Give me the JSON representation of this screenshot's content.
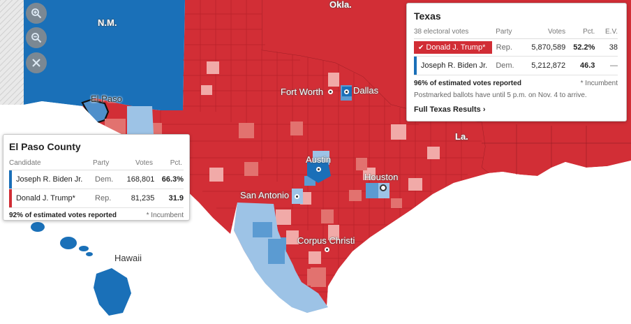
{
  "map": {
    "labels": {
      "nm": "N.M.",
      "okla": "Okla.",
      "la": "La.",
      "el_paso": "El Paso",
      "fort_worth": "Fort Worth",
      "dallas": "Dallas",
      "austin": "Austin",
      "houston": "Houston",
      "san_antonio": "San Antonio",
      "corpus_christi": "Corpus Christi",
      "hawaii": "Hawaii"
    },
    "colors": {
      "rep_strong": "#d22e36",
      "rep_medium": "#e2726f",
      "rep_light": "#f1aaa8",
      "dem_strong": "#1a6fb8",
      "dem_medium": "#5b9bd2",
      "dem_light": "#9dc3e6"
    },
    "controls": {
      "zoom_in": "zoom-in-icon",
      "zoom_out": "zoom-out-icon",
      "reset": "close-icon"
    }
  },
  "texas_panel": {
    "title": "Texas",
    "headers": {
      "electoral": "38 electoral votes",
      "party": "Party",
      "votes": "Votes",
      "pct": "Pct.",
      "ev": "E.V."
    },
    "candidates": [
      {
        "name": "Donald J. Trump*",
        "party": "Rep.",
        "votes": "5,870,589",
        "pct": "52.2%",
        "ev": "38",
        "winner": true,
        "color": "#d12d35"
      },
      {
        "name": "Joseph R. Biden Jr.",
        "party": "Dem.",
        "votes": "5,212,872",
        "pct": "46.3",
        "ev": "—",
        "winner": false,
        "color": "#1a6fb8"
      }
    ],
    "reported": "96% of estimated votes reported",
    "incumbent_note": "* Incumbent",
    "postmark_note": "Postmarked ballots have until 5 p.m. on Nov. 4 to arrive.",
    "link": "Full Texas Results ›"
  },
  "county_panel": {
    "title": "El Paso County",
    "headers": {
      "candidate": "Candidate",
      "party": "Party",
      "votes": "Votes",
      "pct": "Pct."
    },
    "candidates": [
      {
        "name": "Joseph R. Biden Jr.",
        "party": "Dem.",
        "votes": "168,801",
        "pct": "66.3%",
        "color": "#1a6fb8"
      },
      {
        "name": "Donald J. Trump*",
        "party": "Rep.",
        "votes": "81,235",
        "pct": "31.9",
        "color": "#d12d35"
      }
    ],
    "reported": "92% of estimated votes reported",
    "incumbent_note": "* Incumbent"
  }
}
